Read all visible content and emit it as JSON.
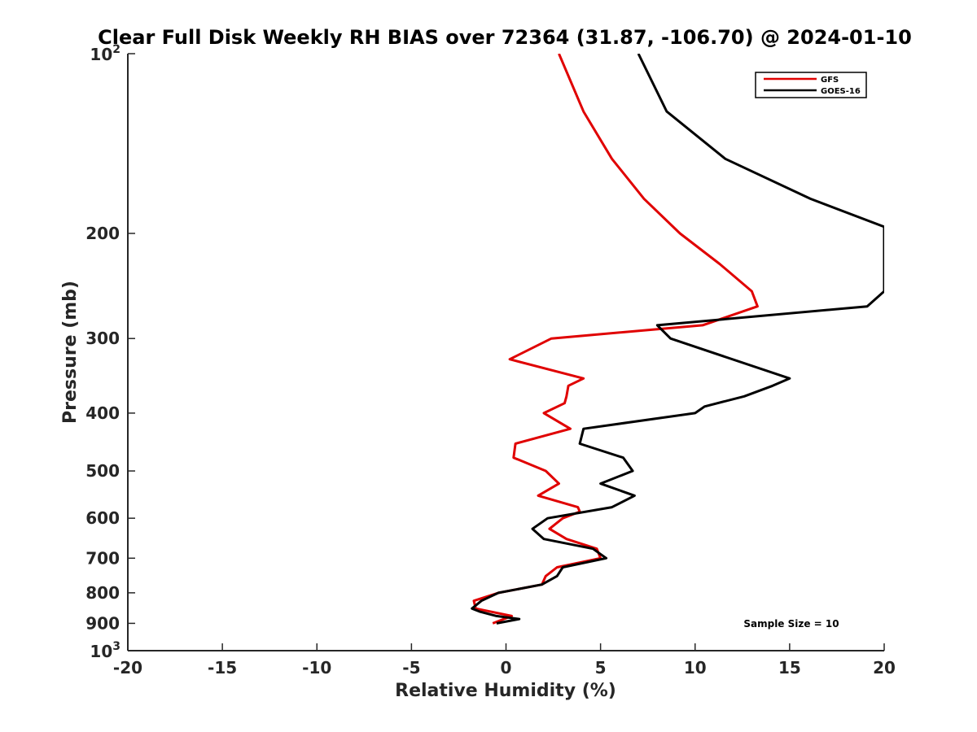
{
  "chart_data": {
    "type": "line",
    "title": "Clear Full Disk Weekly RH BIAS over 72364 (31.87, -106.70) @ 2024-01-10",
    "xlabel": "Relative Humidity (%)",
    "ylabel": "Pressure (mb)",
    "xlim": [
      -20,
      20
    ],
    "ylim": [
      100,
      1000
    ],
    "y_scale": "log",
    "y_reversed": true,
    "x_ticks": [
      "-20",
      "-15",
      "-10",
      "-5",
      "0",
      "5",
      "10",
      "15",
      "20"
    ],
    "x_tick_values": [
      -20,
      -15,
      -10,
      -5,
      0,
      5,
      10,
      15,
      20
    ],
    "y_tick_values": [
      100,
      200,
      300,
      400,
      500,
      600,
      700,
      800,
      900,
      1000
    ],
    "y_ticks_plain": [
      "200",
      "300",
      "400",
      "500",
      "600",
      "700",
      "800",
      "900"
    ],
    "y_tick_top": {
      "base": "10",
      "exp": "2"
    },
    "y_tick_bottom": {
      "base": "10",
      "exp": "3"
    },
    "grid": false,
    "legend_position": "top-right",
    "annotation": "Sample Size = 10",
    "series": [
      {
        "name": "GFS",
        "color": "#e00000",
        "points": [
          [
            2.8,
            100
          ],
          [
            4.1,
            125
          ],
          [
            5.6,
            150
          ],
          [
            7.3,
            175
          ],
          [
            9.2,
            200
          ],
          [
            11.3,
            225
          ],
          [
            13.0,
            250
          ],
          [
            13.3,
            265
          ],
          [
            10.4,
            285
          ],
          [
            2.4,
            300
          ],
          [
            0.2,
            325
          ],
          [
            4.1,
            350
          ],
          [
            3.3,
            360
          ],
          [
            3.2,
            375
          ],
          [
            3.1,
            385
          ],
          [
            2.0,
            400
          ],
          [
            3.4,
            425
          ],
          [
            0.5,
            450
          ],
          [
            0.4,
            475
          ],
          [
            2.1,
            500
          ],
          [
            2.8,
            525
          ],
          [
            1.7,
            550
          ],
          [
            3.8,
            575
          ],
          [
            3.9,
            585
          ],
          [
            3.0,
            600
          ],
          [
            2.3,
            625
          ],
          [
            3.2,
            650
          ],
          [
            4.8,
            675
          ],
          [
            5.0,
            700
          ],
          [
            2.7,
            725
          ],
          [
            2.1,
            750
          ],
          [
            1.9,
            775
          ],
          [
            -0.4,
            800
          ],
          [
            -1.7,
            825
          ],
          [
            -1.6,
            850
          ],
          [
            0.3,
            875
          ],
          [
            -0.7,
            900
          ]
        ]
      },
      {
        "name": "GOES-16",
        "color": "#000000",
        "points": [
          [
            7.0,
            100
          ],
          [
            8.5,
            125
          ],
          [
            11.6,
            150
          ],
          [
            16.1,
            175
          ],
          [
            20.0,
            195
          ],
          [
            20.0,
            250
          ],
          [
            19.1,
            265
          ],
          [
            8.0,
            285
          ],
          [
            8.7,
            300
          ],
          [
            15.0,
            350
          ],
          [
            14.1,
            360
          ],
          [
            12.6,
            375
          ],
          [
            10.5,
            390
          ],
          [
            10.0,
            400
          ],
          [
            4.1,
            425
          ],
          [
            3.9,
            450
          ],
          [
            6.2,
            475
          ],
          [
            6.7,
            500
          ],
          [
            5.0,
            525
          ],
          [
            6.8,
            550
          ],
          [
            5.6,
            575
          ],
          [
            2.2,
            600
          ],
          [
            1.4,
            625
          ],
          [
            2.0,
            650
          ],
          [
            4.6,
            675
          ],
          [
            5.3,
            700
          ],
          [
            3.0,
            725
          ],
          [
            2.7,
            750
          ],
          [
            1.9,
            775
          ],
          [
            -0.4,
            800
          ],
          [
            -1.3,
            825
          ],
          [
            -1.8,
            850
          ],
          [
            -1.4,
            860
          ],
          [
            -0.5,
            875
          ],
          [
            0.7,
            885
          ],
          [
            -0.5,
            900
          ]
        ]
      }
    ]
  }
}
